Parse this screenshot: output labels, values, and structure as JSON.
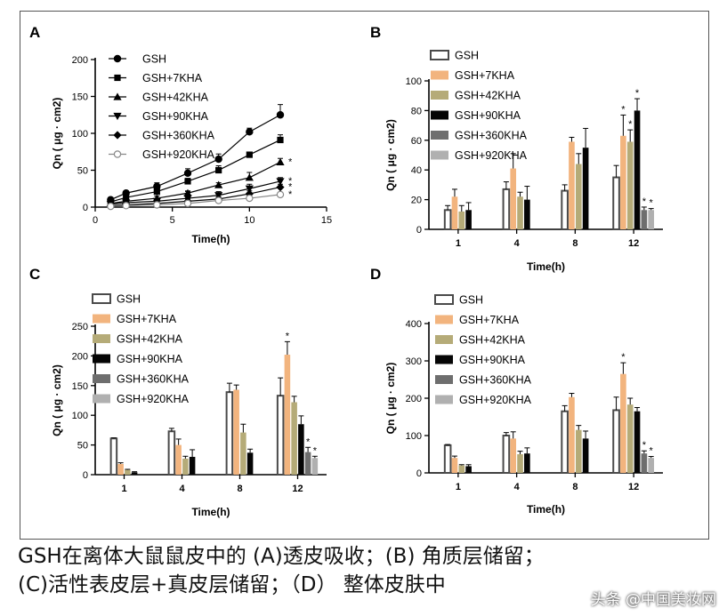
{
  "colors": {
    "GSH": "#4a4a4a",
    "GSH+7KHA": "#f2b47e",
    "GSH+42KHA": "#b5ab78",
    "GSH+90KHA": "#050505",
    "GSH+360KHA": "#6e6e6e",
    "GSH+920KHA": "#b0b0b0"
  },
  "caption": {
    "line1": "GSH在离体大鼠鼠皮中的 (A)透皮吸收；(B) 角质层储留；",
    "line2": "(C)活性表皮层+真皮层储留；（D） 整体皮肤中"
  },
  "watermark": "头条 @中国美妆网",
  "chart_data": [
    {
      "panel": "A",
      "type": "line",
      "xlabel": "Time(h)",
      "ylabel": "Qn ( μg · cm2)",
      "xlim": [
        0,
        15
      ],
      "ylim": [
        0,
        200
      ],
      "xticks": [
        0,
        5,
        10,
        15
      ],
      "yticks": [
        0,
        50,
        100,
        150,
        200
      ],
      "legend_position": "top-left",
      "series": [
        {
          "name": "GSH",
          "marker": "circle",
          "fill": "filled",
          "x": [
            1,
            2,
            4,
            6,
            8,
            10,
            12
          ],
          "y": [
            10,
            19,
            28,
            46,
            65,
            102,
            125
          ],
          "err": [
            3,
            3,
            5,
            6,
            7,
            5,
            14
          ],
          "star": ""
        },
        {
          "name": "GSH+7KHA",
          "marker": "square",
          "fill": "filled",
          "x": [
            1,
            2,
            4,
            6,
            8,
            10,
            12
          ],
          "y": [
            7,
            13,
            21,
            35,
            50,
            71,
            91
          ],
          "err": [
            2,
            3,
            3,
            4,
            6,
            3,
            7
          ],
          "star": ""
        },
        {
          "name": "GSH+42KHA",
          "marker": "triangle-up",
          "fill": "filled",
          "x": [
            1,
            2,
            4,
            6,
            8,
            10,
            12
          ],
          "y": [
            5,
            8,
            12,
            19,
            30,
            40,
            61
          ],
          "err": [
            2,
            2,
            3,
            3,
            3,
            7,
            5
          ],
          "star": "*"
        },
        {
          "name": "GSH+90KHA",
          "marker": "triangle-down",
          "fill": "filled",
          "x": [
            1,
            2,
            4,
            6,
            8,
            10,
            12
          ],
          "y": [
            4,
            6,
            8,
            12,
            16,
            25,
            35
          ],
          "err": [
            2,
            2,
            3,
            9,
            5,
            6,
            5
          ],
          "star": "*"
        },
        {
          "name": "GSH+360KHA",
          "marker": "diamond",
          "fill": "filled",
          "x": [
            1,
            2,
            4,
            6,
            8,
            10,
            12
          ],
          "y": [
            2,
            3,
            5,
            8,
            11,
            18,
            27
          ],
          "err": [
            1,
            1,
            2,
            3,
            3,
            4,
            4
          ],
          "star": "*"
        },
        {
          "name": "GSH+920KHA",
          "marker": "circle",
          "fill": "open",
          "x": [
            1,
            2,
            4,
            6,
            8,
            10,
            12
          ],
          "y": [
            1,
            2,
            3,
            5,
            9,
            12,
            17
          ],
          "err": [
            1,
            1,
            1,
            2,
            3,
            4,
            3
          ],
          "star": "*"
        }
      ]
    },
    {
      "panel": "B",
      "type": "bar",
      "xlabel": "Time(h)",
      "ylabel": "Qn ( μg · cm2)",
      "categories": [
        "1",
        "4",
        "8",
        "12"
      ],
      "ylim": [
        0,
        100
      ],
      "yticks": [
        0,
        20,
        40,
        60,
        80,
        100
      ],
      "legend_position": "top-left",
      "series": [
        {
          "name": "GSH",
          "values": [
            13,
            27,
            26,
            35
          ],
          "err": [
            3,
            5,
            4,
            8
          ],
          "stars": [
            "",
            "",
            "",
            ""
          ]
        },
        {
          "name": "GSH+7KHA",
          "values": [
            22,
            41,
            59,
            63
          ],
          "err": [
            5,
            10,
            3,
            14
          ],
          "stars": [
            "",
            "",
            "",
            "*"
          ]
        },
        {
          "name": "GSH+42KHA",
          "values": [
            12,
            22,
            44,
            59
          ],
          "err": [
            4,
            3,
            7,
            8
          ],
          "stars": [
            "",
            "",
            "",
            "*"
          ]
        },
        {
          "name": "GSH+90KHA",
          "values": [
            13,
            20,
            55,
            80
          ],
          "err": [
            5,
            9,
            13,
            8
          ],
          "stars": [
            "",
            "",
            "",
            "*"
          ]
        },
        {
          "name": "GSH+360KHA",
          "values": [
            null,
            null,
            null,
            13
          ],
          "err": [
            0,
            0,
            0,
            2
          ],
          "stars": [
            "",
            "",
            "",
            "*"
          ]
        },
        {
          "name": "GSH+920KHA",
          "values": [
            null,
            null,
            null,
            13
          ],
          "err": [
            0,
            0,
            0,
            1
          ],
          "stars": [
            "",
            "",
            "",
            "*"
          ]
        }
      ]
    },
    {
      "panel": "C",
      "type": "bar",
      "xlabel": "Time(h)",
      "ylabel": "Qn ( μg · cm2)",
      "categories": [
        "1",
        "4",
        "8",
        "12"
      ],
      "ylim": [
        0,
        250
      ],
      "yticks": [
        0,
        50,
        100,
        150,
        200,
        250
      ],
      "legend_position": "top-left",
      "series": [
        {
          "name": "GSH",
          "values": [
            61,
            73,
            139,
            133
          ],
          "err": [
            1,
            5,
            15,
            30
          ],
          "stars": [
            "",
            "",
            "",
            ""
          ]
        },
        {
          "name": "GSH+7KHA",
          "values": [
            18,
            50,
            143,
            202
          ],
          "err": [
            2,
            10,
            8,
            22
          ],
          "stars": [
            "",
            "",
            "",
            "*"
          ]
        },
        {
          "name": "GSH+42KHA",
          "values": [
            8,
            27,
            71,
            122
          ],
          "err": [
            1,
            4,
            14,
            10
          ],
          "stars": [
            "",
            "",
            "",
            ""
          ]
        },
        {
          "name": "GSH+90KHA",
          "values": [
            4,
            30,
            37,
            85
          ],
          "err": [
            1,
            12,
            6,
            14
          ],
          "stars": [
            "",
            "",
            "",
            ""
          ]
        },
        {
          "name": "GSH+360KHA",
          "values": [
            null,
            null,
            null,
            38
          ],
          "err": [
            0,
            0,
            0,
            8
          ],
          "stars": [
            "",
            "",
            "",
            "*"
          ]
        },
        {
          "name": "GSH+920KHA",
          "values": [
            null,
            null,
            null,
            28
          ],
          "err": [
            0,
            0,
            0,
            3
          ],
          "stars": [
            "",
            "",
            "",
            "*"
          ]
        }
      ]
    },
    {
      "panel": "D",
      "type": "bar",
      "xlabel": "Time(h)",
      "ylabel": "Qn ( μg · cm2)",
      "categories": [
        "1",
        "4",
        "8",
        "12"
      ],
      "ylim": [
        0,
        400
      ],
      "yticks": [
        0,
        100,
        200,
        300,
        400
      ],
      "legend_position": "top-left",
      "series": [
        {
          "name": "GSH",
          "values": [
            74,
            100,
            165,
            168
          ],
          "err": [
            2,
            8,
            15,
            35
          ],
          "stars": [
            "",
            "",
            "",
            ""
          ]
        },
        {
          "name": "GSH+7KHA",
          "values": [
            40,
            92,
            203,
            265
          ],
          "err": [
            5,
            18,
            10,
            30
          ],
          "stars": [
            "",
            "",
            "",
            "*"
          ]
        },
        {
          "name": "GSH+42KHA",
          "values": [
            20,
            50,
            115,
            183
          ],
          "err": [
            2,
            8,
            12,
            17
          ],
          "stars": [
            "",
            "",
            "",
            ""
          ]
        },
        {
          "name": "GSH+90KHA",
          "values": [
            18,
            52,
            92,
            165
          ],
          "err": [
            4,
            15,
            20,
            10
          ],
          "stars": [
            "",
            "",
            "",
            ""
          ]
        },
        {
          "name": "GSH+360KHA",
          "values": [
            null,
            null,
            null,
            52
          ],
          "err": [
            0,
            0,
            0,
            7
          ],
          "stars": [
            "",
            "",
            "",
            "*"
          ]
        },
        {
          "name": "GSH+920KHA",
          "values": [
            null,
            null,
            null,
            40
          ],
          "err": [
            0,
            0,
            0,
            4
          ],
          "stars": [
            "",
            "",
            "",
            "*"
          ]
        }
      ]
    }
  ]
}
